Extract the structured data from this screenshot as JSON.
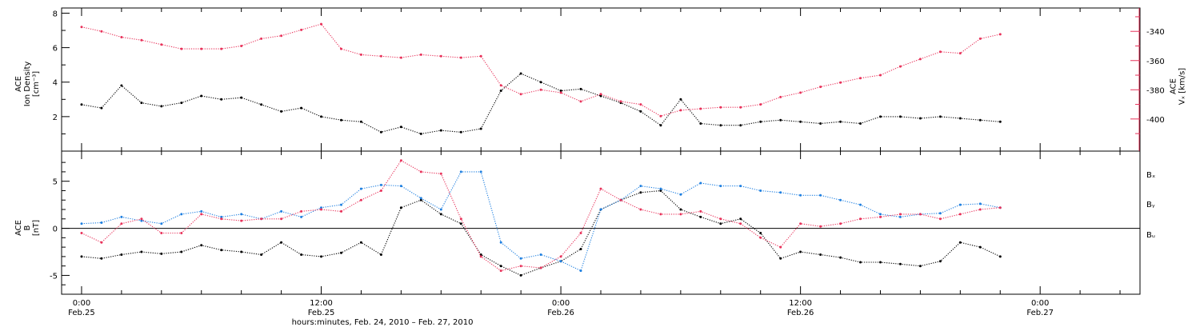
{
  "colors": {
    "black": "#000000",
    "pink": "#e8325a",
    "blue": "#1e7fe0"
  },
  "chart_data": [
    {
      "type": "scatter",
      "panel": "plasma",
      "ylabel": [
        "ACE",
        "Ion Density",
        "[cm⁻³]"
      ],
      "ylim": [
        0,
        8.3
      ],
      "yticks": [
        "8",
        "6",
        "4",
        "2"
      ],
      "ytick_values": [
        8,
        6,
        4,
        2
      ],
      "y2label": [
        "ACE",
        "Vₓ [km/s]"
      ],
      "y2lim": [
        -422,
        -324
      ],
      "y2ticks": [
        "-340",
        "-360",
        "-380",
        "-400"
      ],
      "y2tick_values": [
        -340,
        -360,
        -380,
        -400
      ],
      "series": [
        {
          "color": "black",
          "axis": "left",
          "x": [
            0,
            1,
            2,
            3,
            4,
            5,
            6,
            7,
            8,
            9,
            10,
            11,
            12,
            13,
            14,
            15,
            16,
            17,
            18,
            19,
            20,
            21,
            22,
            23,
            24,
            25,
            26,
            27,
            28,
            29,
            30,
            31,
            32,
            33,
            34,
            35,
            36,
            37,
            38,
            39,
            40,
            41,
            42,
            43,
            44,
            45,
            46
          ],
          "y": [
            2.7,
            2.5,
            3.8,
            2.8,
            2.6,
            2.8,
            3.2,
            3.0,
            3.1,
            2.7,
            2.3,
            2.5,
            2.0,
            1.8,
            1.7,
            1.1,
            1.4,
            1.0,
            1.2,
            1.1,
            1.3,
            3.5,
            4.5,
            4.0,
            3.5,
            3.6,
            3.2,
            2.8,
            2.3,
            1.5,
            3.0,
            1.6,
            1.5,
            1.5,
            1.7,
            1.8,
            1.7,
            1.6,
            1.7,
            1.6,
            2.0,
            2.0,
            1.9,
            2.0,
            1.9,
            1.8,
            1.7
          ]
        },
        {
          "color": "pink",
          "axis": "right",
          "x": [
            0,
            1,
            2,
            3,
            4,
            5,
            6,
            7,
            8,
            9,
            10,
            11,
            12,
            13,
            14,
            15,
            16,
            17,
            18,
            19,
            20,
            21,
            22,
            23,
            24,
            25,
            26,
            27,
            28,
            29,
            30,
            31,
            32,
            33,
            34,
            35,
            36,
            37,
            38,
            39,
            40,
            41,
            42,
            43,
            44,
            45,
            46
          ],
          "y": [
            -337,
            -340,
            -344,
            -346,
            -349,
            -352,
            -352,
            -352,
            -350,
            -345,
            -343,
            -339,
            -335,
            -352,
            -356,
            -357,
            -358,
            -356,
            -357,
            -358,
            -357,
            -377,
            -383,
            -380,
            -382,
            -388,
            -383,
            -388,
            -390,
            -398,
            -394,
            -393,
            -392,
            -392,
            -390,
            -385,
            -382,
            -378,
            -375,
            -372,
            -370,
            -364,
            -359,
            -354,
            -355,
            -345,
            -342
          ]
        }
      ],
      "xlim": [
        -1,
        53
      ]
    },
    {
      "type": "scatter",
      "panel": "magnetic",
      "ylabel": [
        "ACE",
        "B",
        "[nT]"
      ],
      "ylim": [
        -7,
        8.2
      ],
      "yticks": [
        "5",
        "0",
        "-5"
      ],
      "ytick_values": [
        5,
        0,
        -5
      ],
      "legend_position": "right",
      "series": [
        {
          "name": "Bₓ",
          "color": "black",
          "x": [
            0,
            1,
            2,
            3,
            4,
            5,
            6,
            7,
            8,
            9,
            10,
            11,
            12,
            13,
            14,
            15,
            16,
            17,
            18,
            19,
            20,
            21,
            22,
            23,
            24,
            25,
            26,
            27,
            28,
            29,
            30,
            31,
            32,
            33,
            34,
            35,
            36,
            37,
            38,
            39,
            40,
            41,
            42,
            43,
            44,
            45,
            46
          ],
          "y": [
            -3,
            -3.2,
            -2.8,
            -2.5,
            -2.7,
            -2.5,
            -1.8,
            -2.3,
            -2.5,
            -2.8,
            -1.5,
            -2.8,
            -3.0,
            -2.6,
            -1.5,
            -2.8,
            2.2,
            3.0,
            1.5,
            0.5,
            -2.8,
            -4.0,
            -5.0,
            -4.2,
            -3.5,
            -2.2,
            2.0,
            3.0,
            3.8,
            4.0,
            2.0,
            1.2,
            0.5,
            1.0,
            -0.5,
            -3.2,
            -2.5,
            -2.8,
            -3.1,
            -3.6,
            -3.6,
            -3.8,
            -4.0,
            -3.5,
            -1.5,
            -2.0,
            -3.0
          ]
        },
        {
          "name": "Bᵧ",
          "color": "blue",
          "x": [
            0,
            1,
            2,
            3,
            4,
            5,
            6,
            7,
            8,
            9,
            10,
            11,
            12,
            13,
            14,
            15,
            16,
            17,
            18,
            19,
            20,
            21,
            22,
            23,
            24,
            25,
            26,
            27,
            28,
            29,
            30,
            31,
            32,
            33,
            34,
            35,
            36,
            37,
            38,
            39,
            40,
            41,
            42,
            43,
            44,
            45,
            46
          ],
          "y": [
            0.5,
            0.6,
            1.2,
            0.8,
            0.5,
            1.5,
            1.8,
            1.2,
            1.5,
            1.0,
            1.8,
            1.2,
            2.2,
            2.5,
            4.2,
            4.6,
            4.5,
            3.2,
            2.0,
            6.0,
            6.0,
            -1.5,
            -3.2,
            -2.8,
            -3.5,
            -4.5,
            2.0,
            3.0,
            4.5,
            4.2,
            3.6,
            4.8,
            4.5,
            4.5,
            4.0,
            3.8,
            3.5,
            3.5,
            3.0,
            2.5,
            1.5,
            1.2,
            1.5,
            1.6,
            2.5,
            2.6,
            2.2
          ]
        },
        {
          "name": "Bᵤ",
          "color": "pink",
          "x": [
            0,
            1,
            2,
            3,
            4,
            5,
            6,
            7,
            8,
            9,
            10,
            11,
            12,
            13,
            14,
            15,
            16,
            17,
            18,
            19,
            20,
            21,
            22,
            23,
            24,
            25,
            26,
            27,
            28,
            29,
            30,
            31,
            32,
            33,
            34,
            35,
            36,
            37,
            38,
            39,
            40,
            41,
            42,
            43,
            44,
            45,
            46
          ],
          "y": [
            -0.5,
            -1.5,
            0.5,
            1.0,
            -0.5,
            -0.5,
            1.5,
            1.0,
            0.8,
            1.0,
            1.0,
            1.8,
            2.0,
            1.8,
            3.0,
            4.0,
            7.2,
            6.0,
            5.8,
            1.0,
            -3.0,
            -4.5,
            -4.0,
            -4.2,
            -3.0,
            -0.5,
            4.2,
            3.0,
            2.0,
            1.5,
            1.5,
            1.8,
            1.0,
            0.5,
            -1.0,
            -2.0,
            0.5,
            0.2,
            0.5,
            1.0,
            1.2,
            1.5,
            1.5,
            1.0,
            1.5,
            2.0,
            2.2
          ]
        }
      ],
      "xlim": [
        -1,
        53
      ]
    }
  ],
  "x_axis": {
    "label": "hours:minutes, Feb. 24, 2010 – Feb. 27, 2010",
    "tick_hours": [
      0,
      12,
      24,
      36,
      48
    ],
    "tick_labels": [
      [
        "0:00",
        "Feb.25"
      ],
      [
        "12:00",
        "Feb.25"
      ],
      [
        "0:00",
        "Feb.26"
      ],
      [
        "12:00",
        "Feb.26"
      ],
      [
        "0:00",
        "Feb.27"
      ]
    ]
  }
}
